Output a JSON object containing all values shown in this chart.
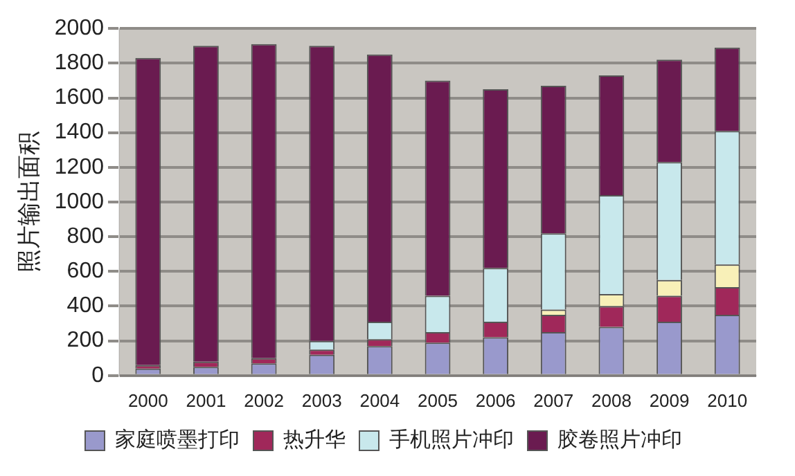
{
  "chart_data": {
    "type": "bar",
    "stacked": true,
    "ylabel": "照片输出面积",
    "categories": [
      "2000",
      "2001",
      "2002",
      "2003",
      "2004",
      "2005",
      "2006",
      "2007",
      "2008",
      "2009",
      "2010"
    ],
    "series": [
      {
        "name": "家庭喷墨打印",
        "color": "#9999cc",
        "values": [
          40,
          50,
          70,
          120,
          170,
          190,
          220,
          250,
          280,
          310,
          350
        ]
      },
      {
        "name": "热升华",
        "color": "#a0285a",
        "values": [
          20,
          30,
          30,
          30,
          40,
          60,
          90,
          100,
          120,
          150,
          160
        ]
      },
      {
        "color": "#f8f0b8",
        "values": [
          0,
          0,
          0,
          0,
          0,
          0,
          0,
          30,
          70,
          90,
          130
        ]
      },
      {
        "name": "手机照片冲印",
        "color": "#c8e8ec",
        "values": [
          0,
          0,
          0,
          50,
          100,
          210,
          310,
          440,
          570,
          680,
          770
        ]
      },
      {
        "name": "胶卷照片冲印",
        "color": "#6a1b50",
        "values": [
          1770,
          1820,
          1810,
          1700,
          1540,
          1240,
          1030,
          850,
          690,
          590,
          480
        ]
      }
    ],
    "ylim": [
      0,
      2000
    ],
    "yticks": [
      0,
      200,
      400,
      600,
      800,
      1000,
      1200,
      1400,
      1600,
      1800,
      2000
    ],
    "grid": "y",
    "legend": "bottom"
  }
}
